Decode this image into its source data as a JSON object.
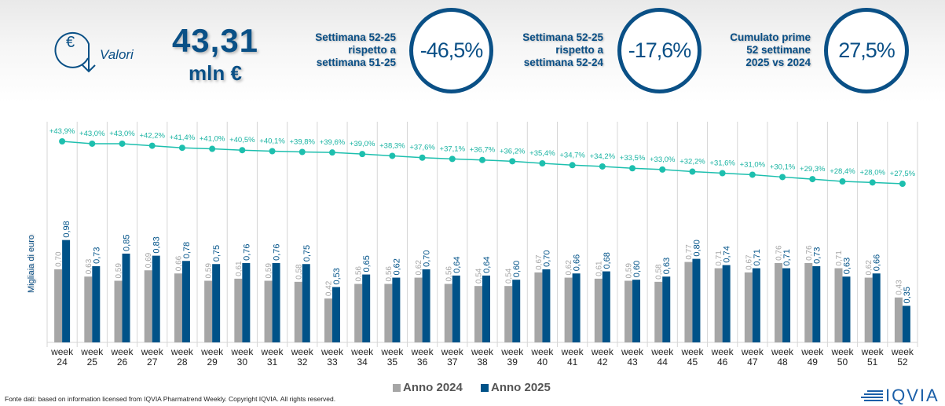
{
  "header": {
    "icon": "euro-down-arrow-icon",
    "label": "Valori",
    "total_value": "43,31",
    "total_unit": "mln €"
  },
  "kpis": [
    {
      "label_lines": [
        "Settimana 52-25",
        "rispetto a",
        "settimana 51-25"
      ],
      "value": "-46,5%"
    },
    {
      "label_lines": [
        "Settimana 52-25",
        "rispetto a",
        "settimana 52-24"
      ],
      "value": "-17,6%"
    },
    {
      "label_lines": [
        "Cumulato prime",
        "52 settimane",
        "2025 vs 2024"
      ],
      "value": "27,5%"
    }
  ],
  "colors": {
    "series_2024": "#a6a6a6",
    "series_2025": "#005288",
    "line": "#1dbfae",
    "brand_blue": "#0a5086"
  },
  "chart_data": {
    "type": "bar",
    "title": "",
    "ylabel": "Migliaia di euro",
    "xlabel": "",
    "grid": true,
    "legend_position": "bottom",
    "categories": [
      "week 24",
      "week 25",
      "week 26",
      "week 27",
      "week 28",
      "week 29",
      "week 30",
      "week 31",
      "week 32",
      "week 33",
      "week 34",
      "week 35",
      "week 36",
      "week 37",
      "week 38",
      "week 39",
      "week 40",
      "week 41",
      "week 42",
      "week 43",
      "week 44",
      "week 45",
      "week 46",
      "week 47",
      "week 48",
      "week 49",
      "week 50",
      "week 51",
      "week 52"
    ],
    "series": [
      {
        "name": "Anno 2024",
        "type": "bar",
        "values": [
          0.7,
          0.63,
          0.59,
          0.69,
          0.66,
          0.59,
          0.61,
          0.59,
          0.58,
          0.42,
          0.56,
          0.56,
          0.62,
          0.56,
          0.54,
          0.54,
          0.67,
          0.62,
          0.61,
          0.59,
          0.58,
          0.77,
          0.71,
          0.67,
          0.76,
          0.76,
          0.71,
          0.62,
          0.43
        ]
      },
      {
        "name": "Anno 2025",
        "type": "bar",
        "values": [
          0.98,
          0.73,
          0.85,
          0.83,
          0.78,
          0.75,
          0.76,
          0.76,
          0.75,
          0.53,
          0.65,
          0.62,
          0.7,
          0.64,
          0.64,
          0.6,
          0.7,
          0.66,
          0.68,
          0.6,
          0.63,
          0.8,
          0.74,
          0.71,
          0.71,
          0.73,
          0.63,
          0.66,
          0.35
        ]
      },
      {
        "name": "Cumulato 2025 vs 2024",
        "type": "line",
        "unit": "%",
        "values": [
          43.9,
          43.0,
          43.0,
          42.2,
          41.4,
          41.0,
          40.5,
          40.1,
          39.8,
          39.6,
          39.0,
          38.3,
          37.6,
          37.1,
          36.7,
          36.2,
          35.4,
          34.7,
          34.2,
          33.5,
          33.0,
          32.2,
          31.6,
          31.0,
          30.1,
          29.3,
          28.4,
          28.0,
          27.5
        ]
      }
    ],
    "bar_labels_2024": [
      "0,70",
      "0,63",
      "0,59",
      "0,69",
      "0,66",
      "0,59",
      "0,61",
      "0,59",
      "0,58",
      "0,42",
      "0,56",
      "0,56",
      "0,62",
      "0,56",
      "0,54",
      "0,54",
      "0,67",
      "0,62",
      "0,61",
      "0,59",
      "0,58",
      "0,77",
      "0,71",
      "0,67",
      "0,76",
      "0,76",
      "0,71",
      "0,62",
      "0,43"
    ],
    "bar_labels_2025": [
      "0,98",
      "0,73",
      "0,85",
      "0,83",
      "0,78",
      "0,75",
      "0,76",
      "0,76",
      "0,75",
      "0,53",
      "0,65",
      "0,62",
      "0,70",
      "0,64",
      "0,64",
      "0,60",
      "0,70",
      "0,66",
      "0,68",
      "0,60",
      "0,63",
      "0,80",
      "0,74",
      "0,71",
      "0,71",
      "0,73",
      "0,63",
      "0,66",
      "0,35"
    ],
    "line_labels": [
      "+43,9%",
      "+43,0%",
      "+43,0%",
      "+42,2%",
      "+41,4%",
      "+41,0%",
      "+40,5%",
      "+40,1%",
      "+39,8%",
      "+39,6%",
      "+39,0%",
      "+38,3%",
      "+37,6%",
      "+37,1%",
      "+36,7%",
      "+36,2%",
      "+35,4%",
      "+34,7%",
      "+34,2%",
      "+33,5%",
      "+33,0%",
      "+32,2%",
      "+31,6%",
      "+31,0%",
      "+30,1%",
      "+29,3%",
      "+28,4%",
      "+28,0%",
      "+27,5%"
    ],
    "x_tick_lines": [
      [
        "week",
        "24"
      ],
      [
        "week",
        "25"
      ],
      [
        "week",
        "26"
      ],
      [
        "week",
        "27"
      ],
      [
        "week",
        "28"
      ],
      [
        "week",
        "29"
      ],
      [
        "week",
        "30"
      ],
      [
        "week",
        "31"
      ],
      [
        "week",
        "32"
      ],
      [
        "week",
        "33"
      ],
      [
        "week",
        "34"
      ],
      [
        "week",
        "35"
      ],
      [
        "week",
        "36"
      ],
      [
        "week",
        "37"
      ],
      [
        "week",
        "38"
      ],
      [
        "week",
        "39"
      ],
      [
        "week",
        "40"
      ],
      [
        "week",
        "41"
      ],
      [
        "week",
        "42"
      ],
      [
        "week",
        "43"
      ],
      [
        "week",
        "44"
      ],
      [
        "week",
        "45"
      ],
      [
        "week",
        "46"
      ],
      [
        "week",
        "47"
      ],
      [
        "week",
        "48"
      ],
      [
        "week",
        "49"
      ],
      [
        "week",
        "50"
      ],
      [
        "week",
        "51"
      ],
      [
        "week",
        "52"
      ]
    ]
  },
  "legend": {
    "item_2024": "Anno 2024",
    "item_2025": "Anno 2025"
  },
  "footer": {
    "source": "Fonte dati: based on information licensed from IQVIA Pharmatrend Weekly. Copyright IQVIA. All rights reserved.",
    "logo_text": "IQVIA",
    "logo_icon": "iqvia-logo-icon"
  }
}
